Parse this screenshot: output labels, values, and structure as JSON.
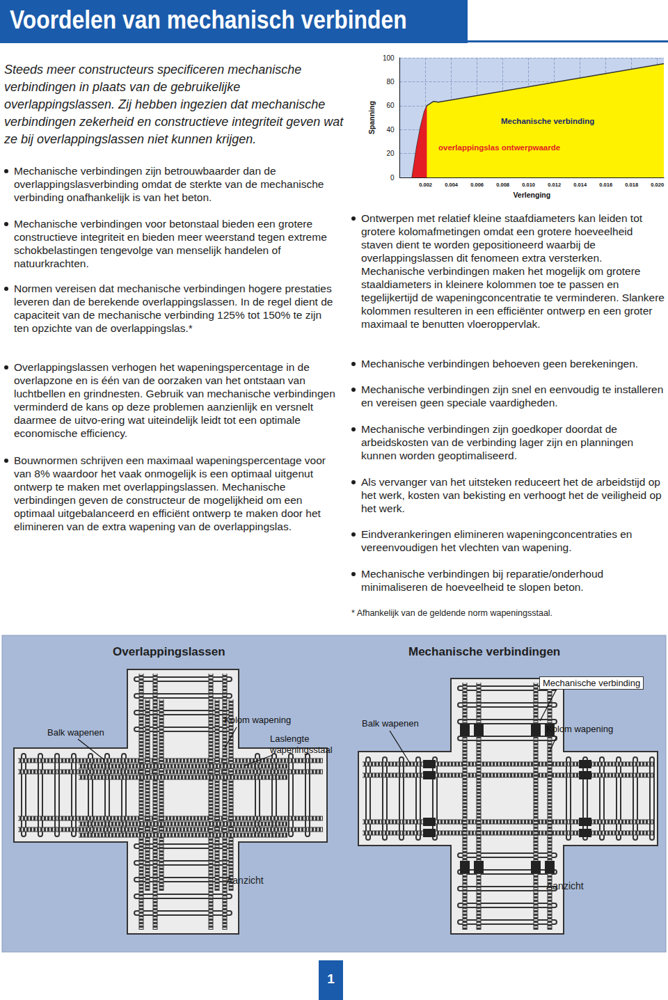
{
  "header": {
    "title": "Voordelen van mechanisch verbinden"
  },
  "intro": "Steeds meer constructeurs specificeren mechanische verbindingen in plaats van de gebruikelijke overlappingslassen. Zij hebben ingezien dat mechanische verbindingen zekerheid en constructieve integriteit geven wat ze bij overlappingslassen niet kunnen krijgen.",
  "bullets_left": [
    "Mechanische verbindingen zijn betrouwbaarder dan de overlappingslasverbinding omdat de sterkte van de mechanische verbinding onafhankelijk is van het beton.",
    "Mechanische verbindingen voor betonstaal bieden een grotere constructieve integriteit en bieden meer weerstand tegen extreme schokbelastingen tengevolge van menselijk handelen of natuurkrachten.",
    "Normen vereisen dat mechanische verbindingen hogere prestaties leveren dan de berekende overlappingslassen. In de regel dient de capaciteit van de mechanische verbinding 125% tot 150% te zijn ten opzichte van de overlappingslas.*",
    "Overlappingslassen verhogen het wapeningspercentage in de overlapzone en is één van de oorzaken van het ontstaan van luchtbellen en grindnesten. Gebruik van mechanische verbindingen verminderd de kans op deze problemen aanzienlijk en versnelt daarmee de uitvo-ering wat uiteindelijk leidt tot een optimale economische efficiency.",
    "Bouwnormen schrijven een maximaal wapeningspercentage voor van 8% waardoor het vaak onmogelijk is een optimaal uitgenut ontwerp te maken met overlappingslassen. Mechanische verbindingen geven de constructeur de mogelijkheid om een optimaal uitgebalanceerd en efficiënt ontwerp te maken door het elimineren van de extra wapening van de overlappingslas."
  ],
  "bullets_right": [
    "Ontwerpen met relatief kleine staafdiameters kan leiden tot grotere kolomafmetingen omdat een grotere hoeveelheid staven dient te worden gepositioneerd waarbij de overlappingslassen dit fenomeen extra versterken. Mechanische verbindingen maken het mogelijk om grotere staaldiameters in kleinere kolommen toe te passen en tegelijkertijd de wapeningconcentratie te verminderen. Slankere kolommen resulteren in een efficiënter ontwerp en een groter maximaal te benutten vloeroppervlak.",
    "Mechanische verbindingen behoeven geen berekeningen.",
    "Mechanische verbindingen zijn snel en eenvoudig te installeren en vereisen geen speciale vaardigheden.",
    "Mechanische verbindingen zijn goedkoper doordat de arbeidskosten van de verbinding lager zijn en planningen kunnen worden geoptimaliseerd.",
    "Als vervanger van het uitsteken reduceert het de arbeidstijd op het werk, kosten van bekisting en verhoogt het de veiligheid op het werk.",
    "Eindverankeringen elimineren wapeningconcentraties en vereenvoudigen het vlechten van wapening.",
    "Mechanische verbindingen bij reparatie/onderhoud minimaliseren de hoeveelheid te slopen beton."
  ],
  "footnote": "* Afhankelijk van de geldende norm wapeningsstaal.",
  "chart_data": {
    "type": "area",
    "xlabel": "Verlenging",
    "ylabel": "Spanning",
    "x": [
      0.00095,
      0.0013,
      0.0016,
      0.0019,
      0.0021,
      0.0026,
      0.003,
      0.0205
    ],
    "series": [
      {
        "name": "Mechanische verbinding",
        "color": "#fff200",
        "values": [
          0,
          25,
          42,
          55,
          60,
          63.5,
          63,
          95
        ]
      },
      {
        "name": "overlappingslas ontwerpwaarde",
        "color": "#e31e24",
        "values": [
          0,
          25,
          42,
          55,
          60,
          null,
          null,
          null
        ]
      }
    ],
    "xlim": [
      0,
      0.0205
    ],
    "ylim": [
      0,
      100
    ],
    "xticks": [
      0.002,
      0.004,
      0.006,
      0.008,
      {
        "value": 0.01,
        "label": "0.010"
      },
      0.012,
      0.014,
      0.016,
      0.018,
      {
        "value": 0.02,
        "label": "0.020"
      }
    ],
    "yticks": [
      0,
      20,
      40,
      60,
      80,
      100
    ],
    "grid": true
  },
  "diagram": {
    "panels": [
      {
        "title": "Overlappingslassen",
        "beam_label": "Balk wapenen",
        "column_label": "Kolom wapening",
        "lap_label": "Laslengte wapeningsstaal",
        "view": "Aanzicht"
      },
      {
        "title": "Mechanische verbindingen",
        "beam_label": "Balk wapenen",
        "column_label": "Kolom wapening",
        "coupler_label": "Mechanische verbinding",
        "view": "Aanzicht"
      }
    ]
  },
  "page_number": 1
}
